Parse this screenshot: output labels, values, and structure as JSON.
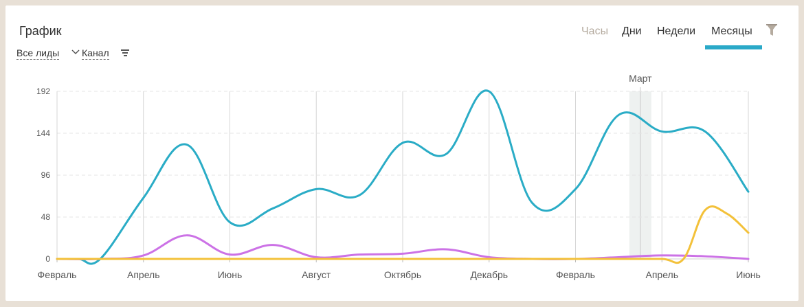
{
  "header": {
    "title": "График",
    "filters": [
      "Все лиды",
      "Канал"
    ],
    "tabs": [
      "Часы",
      "Дни",
      "Недели",
      "Месяцы"
    ],
    "active_tab": "Месяцы"
  },
  "colors": {
    "accent": "#2aa9c8",
    "series_blue": "#2aacc6",
    "series_purple": "#cc72e6",
    "series_yellow": "#f3c13a"
  },
  "icons": {
    "filter_chevron": "chevron-down-icon",
    "sort": "sort-lines-icon",
    "funnel": "funnel-icon"
  },
  "chart_data": {
    "type": "line",
    "y_ticks": [
      0,
      48,
      96,
      144,
      192
    ],
    "ylim": [
      0,
      192
    ],
    "x_tick_labels": [
      "Февраль",
      "Апрель",
      "Июнь",
      "Август",
      "Октябрь",
      "Декабрь",
      "Февраль",
      "Апрель",
      "Июнь"
    ],
    "highlight_label": "Март",
    "highlight_x": 13.5,
    "grid": true,
    "series": [
      {
        "color": "#2aacc6",
        "x": [
          0,
          0.5,
          1,
          2,
          3,
          4,
          5,
          6,
          7,
          8,
          9,
          10,
          11,
          12,
          13,
          14,
          15,
          16
        ],
        "values": [
          0,
          0,
          0,
          70,
          131,
          42,
          58,
          80,
          73,
          133,
          120,
          192,
          64,
          80,
          165,
          146,
          146,
          77
        ]
      },
      {
        "color": "#cc72e6",
        "x": [
          0,
          1,
          2,
          3,
          4,
          5,
          6,
          7,
          8,
          9,
          10,
          11,
          12,
          13,
          14,
          15,
          16
        ],
        "values": [
          0,
          0,
          4,
          27,
          5,
          16,
          2,
          5,
          6,
          11,
          2,
          0,
          0,
          2,
          4,
          3,
          0
        ]
      },
      {
        "color": "#f3c13a",
        "x": [
          0,
          1,
          2,
          3,
          4,
          5,
          6,
          7,
          8,
          9,
          10,
          11,
          12,
          13,
          14,
          14.5,
          15,
          15.5,
          16
        ],
        "values": [
          0,
          0,
          0,
          0,
          0,
          0,
          0,
          0,
          0,
          0,
          0,
          0,
          0,
          0,
          0,
          0,
          56,
          52,
          30
        ]
      }
    ]
  }
}
